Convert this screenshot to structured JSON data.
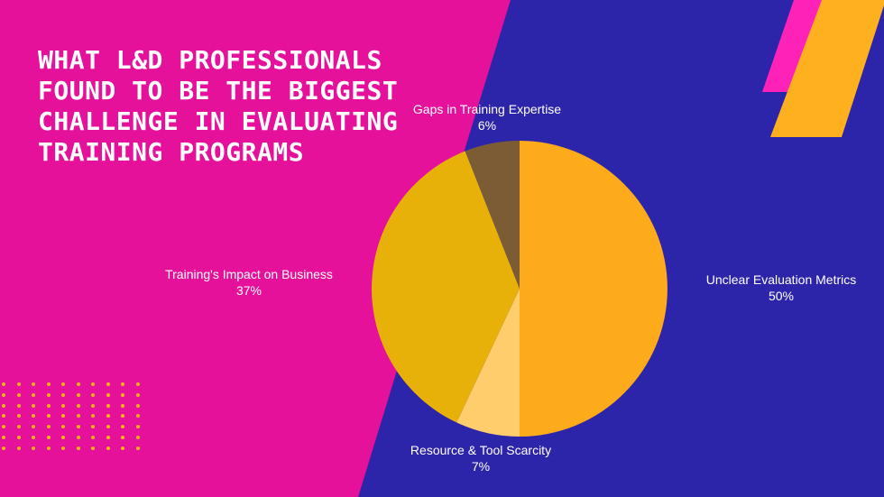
{
  "title": "What L&D Professionals Found to Be the Biggest Challenge in Evaluating Training Programs",
  "colors": {
    "pink": "#e6119b",
    "blue": "#2c25aa",
    "accent_pink": "#ff22b8",
    "accent_orange": "#ffb01f",
    "dots": "#ffb414"
  },
  "chart_data": {
    "type": "pie",
    "title": "What L&D Professionals Found to Be the Biggest Challenge in Evaluating Training Programs",
    "slices": [
      {
        "label": "Unclear Evaluation Metrics",
        "value": 50,
        "display": "50%",
        "color": "#fdaa1b"
      },
      {
        "label": "Resource & Tool Scarcity",
        "value": 7,
        "display": "7%",
        "color": "#ffcd6b"
      },
      {
        "label": "Training's Impact on Business",
        "value": 37,
        "display": "37%",
        "color": "#e8b10a"
      },
      {
        "label": "Gaps in Training Expertise",
        "value": 6,
        "display": "6%",
        "color": "#7c5c34"
      }
    ],
    "legend": "none"
  }
}
